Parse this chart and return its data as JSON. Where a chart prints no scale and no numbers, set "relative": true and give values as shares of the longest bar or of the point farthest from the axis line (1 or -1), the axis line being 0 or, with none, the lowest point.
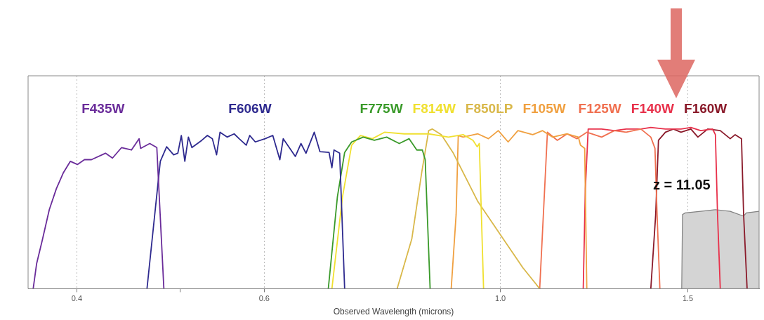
{
  "chart_data": {
    "type": "line",
    "relative": true,
    "xlabel": "Observed Wavelength (microns)",
    "log": "x",
    "xlim": [
      0.36,
      1.75
    ],
    "xticks": [
      0.4,
      {
        "value": 0.5,
        "label": null
      },
      0.6,
      {
        "value": 1.0,
        "label": "1.0"
      },
      1.5
    ],
    "grid": "x",
    "marker": "none",
    "annotations": [
      "z = 11.05"
    ],
    "series": [
      {
        "name": "F435W",
        "color": "#6a2c9a",
        "x": [
          0.364,
          0.3667,
          0.3712,
          0.3769,
          0.3827,
          0.3886,
          0.3945,
          0.4005,
          0.4067,
          0.4129,
          0.4256,
          0.4321,
          0.4407,
          0.4502,
          0.4577,
          0.4592,
          0.4684,
          0.4756,
          0.4829
        ],
        "values": [
          0,
          0.155,
          0.3,
          0.49,
          0.62,
          0.72,
          0.79,
          0.77,
          0.8,
          0.8,
          0.84,
          0.81,
          0.875,
          0.86,
          0.93,
          0.87,
          0.9,
          0.875,
          0
        ]
      },
      {
        "name": "F606W",
        "color": "#2e2a8f",
        "x": [
          0.4656,
          0.4792,
          0.4858,
          0.4932,
          0.4977,
          0.5015,
          0.5053,
          0.5092,
          0.5131,
          0.5242,
          0.5306,
          0.5363,
          0.5412,
          0.5453,
          0.5537,
          0.5622,
          0.5683,
          0.5771,
          0.5815,
          0.5885,
          0.6012,
          0.6112,
          0.6206,
          0.6252,
          0.6418,
          0.6496,
          0.6567,
          0.6686,
          0.6768,
          0.6903,
          0.6946,
          0.6978,
          0.7063,
          0.714
        ],
        "values": [
          0,
          0.79,
          0.88,
          0.83,
          0.84,
          0.95,
          0.79,
          0.94,
          0.875,
          0.92,
          0.95,
          0.93,
          0.83,
          0.97,
          0.94,
          0.96,
          0.93,
          0.89,
          0.95,
          0.91,
          0.93,
          0.95,
          0.8,
          0.93,
          0.82,
          0.9,
          0.84,
          0.97,
          0.85,
          0.845,
          0.75,
          0.86,
          0.84,
          0
        ]
      },
      {
        "name": "F775W",
        "color": "#3a9a2a",
        "x": [
          0.6892,
          0.7029,
          0.714,
          0.7249,
          0.7433,
          0.7614,
          0.7819,
          0.8035,
          0.8209,
          0.8346,
          0.8447,
          0.8499,
          0.859
        ],
        "values": [
          0,
          0.57,
          0.845,
          0.91,
          0.94,
          0.92,
          0.94,
          0.9,
          0.93,
          0.86,
          0.86,
          0.8,
          0
        ]
      },
      {
        "name": "F814W",
        "color": "#f0e030",
        "x": [
          0.6946,
          0.7107,
          0.7249,
          0.7388,
          0.7581,
          0.7783,
          0.8121,
          0.8563,
          0.8937,
          0.9226,
          0.9425,
          0.951,
          0.9554,
          0.9643
        ],
        "values": [
          0,
          0.57,
          0.89,
          0.95,
          0.93,
          0.97,
          0.96,
          0.96,
          0.94,
          0.955,
          0.92,
          0.88,
          0.9,
          0
        ]
      },
      {
        "name": "F850LP",
        "color": "#d9b84a",
        "x": [
          0.7998,
          0.8257,
          0.8435,
          0.8563,
          0.863,
          0.8801,
          0.9033,
          0.9525,
          1.006,
          1.0498,
          1.0888
        ],
        "values": [
          0,
          0.31,
          0.72,
          0.98,
          0.99,
          0.955,
          0.84,
          0.54,
          0.31,
          0.13,
          0
        ]
      },
      {
        "name": "F105W",
        "color": "#f0a040",
        "x": [
          0.8991,
          0.9087,
          0.9129,
          0.9226,
          0.9525,
          0.9745,
          0.9955,
          1.0169,
          1.0387,
          1.0724,
          1.0955,
          1.1191,
          1.1553,
          1.1838,
          1.1891,
          1.2001,
          1.2056
        ],
        "values": [
          0,
          0.46,
          0.95,
          0.94,
          0.96,
          0.93,
          0.98,
          0.91,
          0.98,
          0.955,
          0.98,
          0.94,
          0.96,
          0.94,
          0.89,
          0.87,
          0
        ]
      },
      {
        "name": "F125W",
        "color": "#f07050",
        "x": [
          1.0888,
          1.1005,
          1.1071,
          1.1311,
          1.1553,
          1.18,
          1.2056,
          1.2448,
          1.2795,
          1.3127,
          1.3552,
          1.3846,
          1.3971,
          1.4035,
          1.412
        ],
        "values": [
          0,
          0.62,
          0.97,
          0.92,
          0.96,
          0.93,
          0.97,
          0.94,
          0.98,
          0.97,
          0.99,
          0.94,
          0.87,
          0.46,
          0
        ]
      },
      {
        "name": "F140W",
        "color": "#e8304a",
        "x": [
          1.1963,
          1.2018,
          1.2092,
          1.2448,
          1.2795,
          1.3127,
          1.3552,
          1.3846,
          1.4292,
          1.478,
          1.51,
          1.5423,
          1.5826,
          1.5922,
          1.5996,
          1.6091
        ],
        "values": [
          0,
          0.62,
          0.99,
          0.99,
          0.98,
          0.99,
          0.99,
          1.0,
          0.99,
          0.99,
          1.0,
          0.98,
          0.99,
          0.955,
          0.46,
          0
        ]
      },
      {
        "name": "F160W",
        "color": "#8a1a2a",
        "x": [
          1.3846,
          1.3993,
          1.4077,
          1.4292,
          1.4537,
          1.478,
          1.51,
          1.533,
          1.5659,
          1.6091,
          1.644,
          1.6618,
          1.6847,
          1.6924,
          1.7052
        ],
        "values": [
          0,
          0.46,
          0.92,
          0.97,
          0.99,
          0.97,
          0.99,
          0.94,
          0.99,
          0.98,
          0.93,
          0.955,
          0.93,
          0.46,
          0
        ]
      },
      {
        "type": "area",
        "color": "#d4d4d4",
        "x": [
          1.4803,
          1.4827,
          1.4916,
          1.5423,
          1.5922,
          1.644,
          1.6924,
          1.7022,
          1.75
        ],
        "values": [
          0,
          0.46,
          0.47,
          0.48,
          0.49,
          0.48,
          0.45,
          0.47,
          0.48
        ]
      }
    ]
  }
}
